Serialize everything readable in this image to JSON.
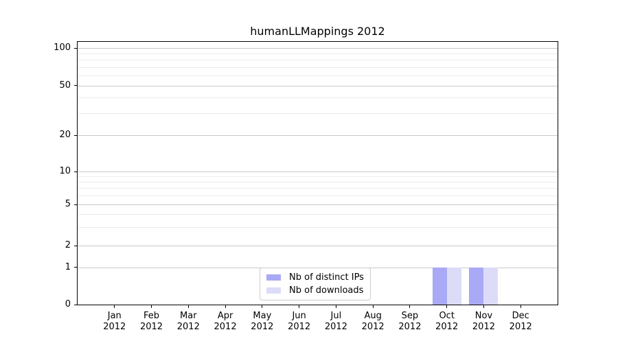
{
  "chart_data": {
    "type": "bar",
    "title": "humanLLMappings 2012",
    "categories": [
      "Jan 2012",
      "Feb 2012",
      "Mar 2012",
      "Apr 2012",
      "May 2012",
      "Jun 2012",
      "Jul 2012",
      "Aug 2012",
      "Sep 2012",
      "Oct 2012",
      "Nov 2012",
      "Dec 2012"
    ],
    "series": [
      {
        "name": "Nb of distinct IPs",
        "color": "#a9a9f6",
        "values": [
          0,
          0,
          0,
          0,
          0,
          0,
          0,
          0,
          0,
          1,
          1,
          0
        ]
      },
      {
        "name": "Nb of downloads",
        "color": "#dcdcf8",
        "values": [
          0,
          0,
          0,
          0,
          0,
          0,
          0,
          0,
          0,
          1,
          1,
          0
        ]
      }
    ],
    "y_axis": {
      "scale": "symlog",
      "major_ticks": [
        0,
        1,
        2,
        5,
        10,
        20,
        50,
        100
      ],
      "minor_gridline_values": [
        3,
        4,
        6,
        7,
        8,
        9,
        30,
        40,
        60,
        70,
        80,
        90
      ],
      "grid": "on"
    },
    "x_axis": {
      "tick_labels_two_lines": true
    },
    "legend": {
      "position": "lower-center",
      "items": [
        "Nb of distinct IPs",
        "Nb of downloads"
      ]
    }
  },
  "colors": {
    "background": "#ffffff",
    "spine": "#000000",
    "major_grid": "#c8c8c8",
    "minor_grid": "#ececec",
    "text": "#000000",
    "legend_border": "#cccccc",
    "series_distinct_ips": "#a9a9f6",
    "series_downloads": "#dcdcf8"
  }
}
